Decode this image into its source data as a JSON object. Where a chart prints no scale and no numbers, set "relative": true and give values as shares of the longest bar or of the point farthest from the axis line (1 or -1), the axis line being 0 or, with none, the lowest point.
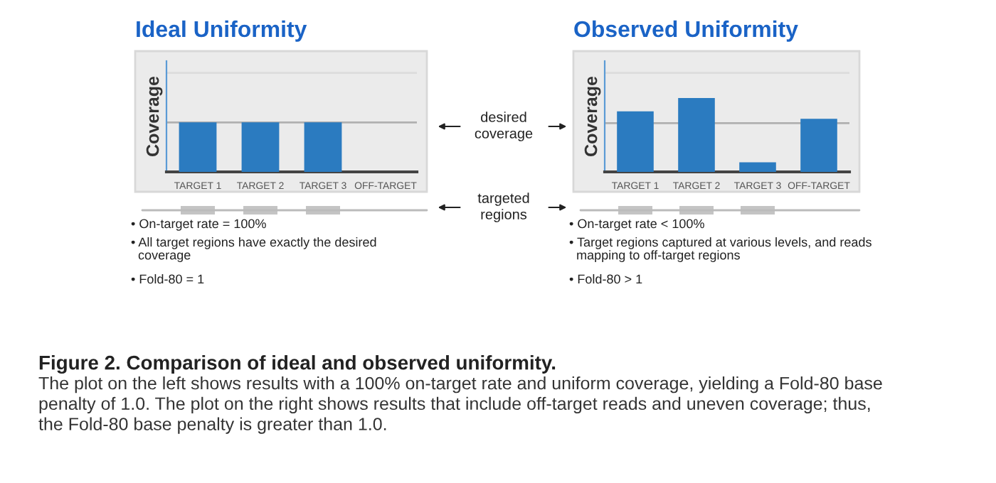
{
  "chart_data": [
    {
      "type": "bar",
      "title": "Ideal Uniformity",
      "ylabel": "Coverage",
      "relative": true,
      "categories": [
        "TARGET 1",
        "TARGET 2",
        "TARGET 3",
        "OFF-TARGET"
      ],
      "values": [
        1,
        1,
        1,
        0
      ],
      "color": "#2b7bc0",
      "ref_lines": [
        {
          "axis": "y",
          "value": 1,
          "color": "#b0b0b0"
        },
        {
          "axis": "y",
          "value": 2,
          "color": "#dcdcdc"
        }
      ],
      "annotations": [
        "• On-target rate = 100%",
        "• All target regions have exactly the desired\n  coverage",
        "• Fold-80 = 1",
        "desired\ncoverage",
        "targeted\nregions",
        "Figure 2. Comparison of ideal and observed uniformity.",
        "The plot on the left shows results with a 100% on-target rate and uniform coverage, yielding a Fold-80 base\npenalty of 1.0. The plot on the right shows results that include off-target reads and uneven coverage; thus,\nthe Fold-80 base penalty is greater than 1.0."
      ]
    },
    {
      "type": "bar",
      "title": "Observed Uniformity",
      "ylabel": "Coverage",
      "relative": true,
      "categories": [
        "TARGET 1",
        "TARGET 2",
        "TARGET 3",
        "OFF-TARGET"
      ],
      "values": [
        0.82,
        1,
        0.13,
        0.72
      ],
      "color": "#2b7bc0",
      "ref_lines": [
        {
          "axis": "y",
          "value": 0.66,
          "color": "#b0b0b0"
        },
        {
          "axis": "y",
          "value": 1.34,
          "color": "#dcdcdc"
        }
      ],
      "annotations": [
        "• On-target rate < 100%",
        "• Target regions captured at various levels, and reads\n  mapping to off-target regions",
        "• Fold-80 > 1"
      ]
    }
  ]
}
